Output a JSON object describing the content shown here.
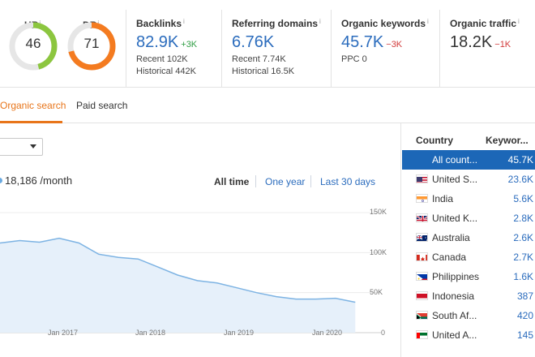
{
  "metrics": {
    "ur": {
      "label": "UR",
      "info": "i",
      "value": "46",
      "fraction": 0.46,
      "color": "#8cc63f"
    },
    "dr": {
      "label": "DR",
      "info": "i",
      "value": "71",
      "fraction": 0.71,
      "color": "#f47b20"
    },
    "backlinks": {
      "title": "Backlinks",
      "info": "i",
      "value": "82.9K",
      "delta": "+3K",
      "recent": "Recent 102K",
      "historical": "Historical 442K"
    },
    "referring_domains": {
      "title": "Referring domains",
      "info": "i",
      "value": "6.76K",
      "recent": "Recent 7.74K",
      "historical": "Historical 16.5K"
    },
    "organic_keywords": {
      "title": "Organic keywords",
      "info": "i",
      "value": "45.7K",
      "delta": "−3K",
      "ppc": "PPC 0"
    },
    "organic_traffic": {
      "title": "Organic traffic",
      "info": "i",
      "value": "18.2K",
      "delta": "−1K"
    }
  },
  "tabs": {
    "organic": "Organic search",
    "paid": "Paid search"
  },
  "traffic": {
    "value": "18,186 /month"
  },
  "ranges": {
    "all": "All time",
    "year": "One year",
    "days30": "Last 30 days"
  },
  "chart_data": {
    "type": "area",
    "x": [
      "2016-01",
      "2016-04",
      "2016-07",
      "2016-10",
      "2017-01",
      "2017-04",
      "2017-07",
      "2017-10",
      "2018-01",
      "2018-04",
      "2018-07",
      "2018-10",
      "2019-01",
      "2019-04",
      "2019-07",
      "2019-10",
      "2020-01",
      "2020-04",
      "2020-07"
    ],
    "values": [
      112000,
      115000,
      113000,
      118000,
      112000,
      98000,
      94000,
      92000,
      82000,
      72000,
      65000,
      62000,
      56000,
      50000,
      45000,
      42000,
      42000,
      43000,
      38000
    ],
    "y_ticks": [
      "150K",
      "100K",
      "50K",
      "0"
    ],
    "x_ticks": [
      "Jan 2017",
      "Jan 2018",
      "Jan 2019",
      "Jan 2020"
    ],
    "ylim": [
      0,
      150000
    ],
    "line_color": "#7db3e3",
    "fill_color": "#e6f0fa"
  },
  "countries": {
    "header_country": "Country",
    "header_keywords": "Keywor...",
    "rows": [
      {
        "name": "All count...",
        "value": "45.7K",
        "flag": "none",
        "selected": true
      },
      {
        "name": "United S...",
        "value": "23.6K",
        "flag": "us"
      },
      {
        "name": "India",
        "value": "5.6K",
        "flag": "in"
      },
      {
        "name": "United K...",
        "value": "2.8K",
        "flag": "uk"
      },
      {
        "name": "Australia",
        "value": "2.6K",
        "flag": "au"
      },
      {
        "name": "Canada",
        "value": "2.7K",
        "flag": "ca"
      },
      {
        "name": "Philippines",
        "value": "1.6K",
        "flag": "ph"
      },
      {
        "name": "Indonesia",
        "value": "387",
        "flag": "id"
      },
      {
        "name": "South Af...",
        "value": "420",
        "flag": "za"
      },
      {
        "name": "United A...",
        "value": "145",
        "flag": "ae"
      }
    ]
  }
}
